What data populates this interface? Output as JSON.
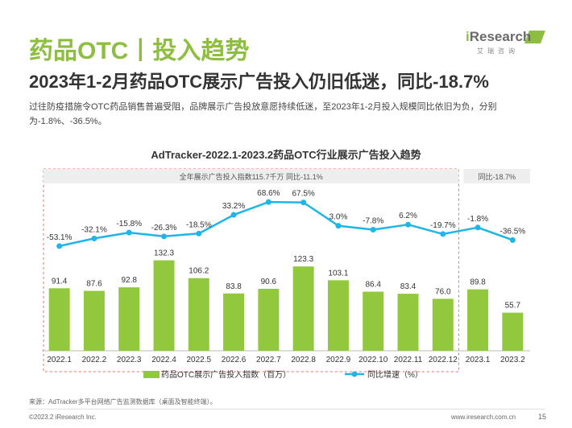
{
  "header": {
    "title": "药品OTC丨投入趋势",
    "subtitle": "2023年1-2月药品OTC展示广告投入仍旧低迷，同比-18.7%",
    "description": "过往防疫措施令OTC药品销售普遍受阻，品牌展示广告投放意愿持续低迷，至2023年1-2月投入规模同比依旧为负，分别为-1.8%、-36.5%。"
  },
  "logo": {
    "brand_i": "i",
    "brand_rest": "Research",
    "brand_sub": "艾瑞咨询"
  },
  "colors": {
    "bar": "#92C83E",
    "line": "#1FB5E8",
    "accent": "#8DBE3F",
    "dashed_box": "#E8706A"
  },
  "chart_data": {
    "type": "bar+line",
    "title": "AdTracker-2022.1-2023.2药品OTC行业展示广告投入趋势",
    "categories": [
      "2022.1",
      "2022.2",
      "2022.3",
      "2022.4",
      "2022.5",
      "2022.6",
      "2022.7",
      "2022.8",
      "2022.9",
      "2022.10",
      "2022.11",
      "2022.12",
      "2023.1",
      "2023.2"
    ],
    "series": [
      {
        "name": "药品OTC展示广告投入指数（百万）",
        "kind": "bar",
        "values": [
          91.4,
          87.6,
          92.8,
          132.3,
          106.2,
          83.8,
          90.6,
          123.3,
          103.1,
          86.4,
          83.4,
          76.0,
          89.8,
          55.7
        ],
        "labels": [
          "91.4",
          "87.6",
          "92.8",
          "132.3",
          "106.2",
          "83.8",
          "90.6",
          "123.3",
          "103.1",
          "86.4",
          "83.4",
          "76.0",
          "89.8",
          "55.7"
        ]
      },
      {
        "name": "同比增速（%）",
        "kind": "line",
        "values": [
          -53.1,
          -32.1,
          -15.8,
          -26.3,
          -18.5,
          33.2,
          68.6,
          67.5,
          3.0,
          -7.8,
          6.2,
          -19.7,
          -1.8,
          -36.5
        ],
        "labels": [
          "-53.1%",
          "-32.1%",
          "-15.8%",
          "-26.3%",
          "-18.5%",
          "33.2%",
          "68.6%",
          "67.5%",
          "3.0%",
          "-7.8%",
          "6.2%",
          "-19.7%",
          "-1.8%",
          "-36.5%"
        ]
      }
    ],
    "annotations": {
      "year_2022": "全年展示广告投入指数115.7千万    同比-11.1%",
      "period_2023": "同比-18.7%"
    },
    "legend": {
      "bar": "药品OTC展示广告投入指数（百万）",
      "line": "同比增速（%）",
      "placement": "bottom"
    },
    "bar_ylim": [
      0,
      150
    ],
    "line_ylim": [
      -80,
      80
    ]
  },
  "footer": {
    "source": "来源：AdTracker多平台网络广告监测数据库（桌面及智能终端）。",
    "copyright": "©2023.2 iResearch Inc.",
    "website": "www.iresearch.com.cn",
    "page": "15"
  }
}
